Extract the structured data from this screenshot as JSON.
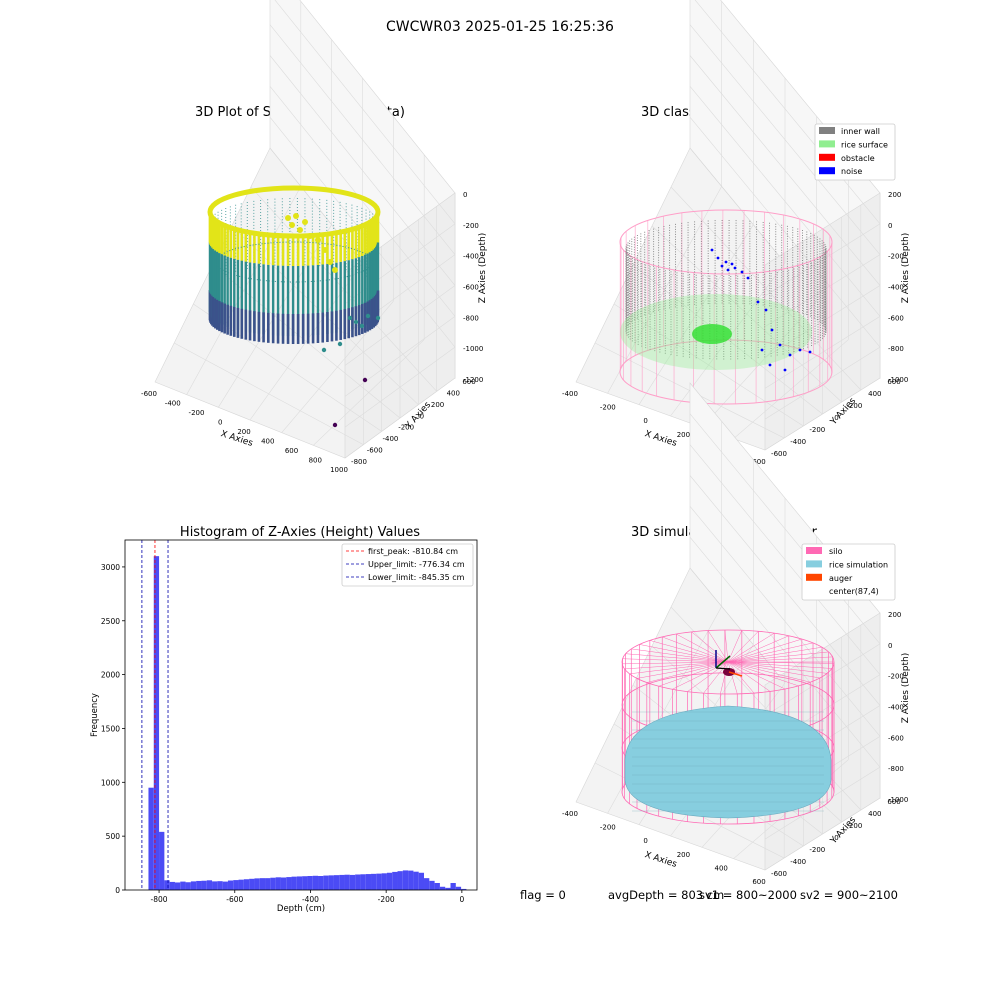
{
  "figure": {
    "suptitle": "CWCWR03 2025-01-25 16:25:36"
  },
  "panels": {
    "raw": {
      "title": "3D Plot of Silo Interior(row data)",
      "xlabel": "X Axies",
      "ylabel": "Y Axies",
      "zlabel": "Z Axies (Depth)",
      "xticks": [
        "-600",
        "-400",
        "-200",
        "0",
        "200",
        "400",
        "600",
        "800",
        "1000"
      ],
      "yticks": [
        "-800",
        "-600",
        "-400",
        "-200",
        "0",
        "200",
        "400",
        "600"
      ],
      "zticks": [
        "0",
        "-200",
        "-400",
        "-600",
        "-800",
        "-1000",
        "-1200"
      ],
      "colors": {
        "high": "#e2e418",
        "mid": "#2f8d8c",
        "low": "#3b528b",
        "deep": "#440154"
      }
    },
    "classify": {
      "title": "3D classify of Silo Interior",
      "xlabel": "X Axies",
      "ylabel": "Y Axies",
      "zlabel": "Z Axies (Depth)",
      "xticks": [
        "-400",
        "-200",
        "0",
        "200",
        "400",
        "600"
      ],
      "yticks": [
        "-600",
        "-400",
        "-200",
        "0",
        "200",
        "400",
        "600"
      ],
      "zticks": [
        "200",
        "0",
        "-200",
        "-400",
        "-600",
        "-800",
        "-1000"
      ],
      "legend": [
        {
          "label": "inner wall",
          "color": "#808080"
        },
        {
          "label": "rice surface",
          "color": "#90ee90"
        },
        {
          "label": "obstacle",
          "color": "#ff0000"
        },
        {
          "label": "noise",
          "color": "#0000ff"
        }
      ],
      "colors": {
        "wireframe": "#ff9ec8"
      }
    },
    "simulation": {
      "title": "3D simulation of Silo Interior",
      "xlabel": "X Axies",
      "ylabel": "Y Axies",
      "zlabel": "Z Axies (Depth)",
      "xticks": [
        "-400",
        "-200",
        "0",
        "200",
        "400",
        "600"
      ],
      "yticks": [
        "-600",
        "-400",
        "-200",
        "0",
        "200",
        "400",
        "600"
      ],
      "zticks": [
        "200",
        "0",
        "-200",
        "-400",
        "-600",
        "-800",
        "-1000"
      ],
      "legend": [
        {
          "label": "silo",
          "color": "#ff69b4"
        },
        {
          "label": "rice simulation",
          "color": "#87cedf"
        },
        {
          "label": "auger",
          "color": "#ff4500"
        },
        {
          "label": "center(87,4)",
          "color": ""
        }
      ]
    }
  },
  "chart_data": {
    "type": "bar",
    "title": "Histogram of Z-Axies (Height) Values",
    "xlabel": "Depth (cm)",
    "ylabel": "Frequency",
    "xlim": [
      -890,
      40
    ],
    "ylim": [
      0,
      3250
    ],
    "xticks": [
      -800,
      -600,
      -400,
      -200,
      0
    ],
    "yticks": [
      0,
      500,
      1000,
      1500,
      2000,
      2500,
      3000
    ],
    "bin_width": 14,
    "bin_starts": [
      -828,
      -814,
      -800,
      -786,
      -772,
      -758,
      -744,
      -730,
      -716,
      -702,
      -688,
      -674,
      -660,
      -646,
      -632,
      -618,
      -604,
      -590,
      -576,
      -562,
      -548,
      -534,
      -520,
      -506,
      -492,
      -478,
      -464,
      -450,
      -436,
      -422,
      -408,
      -394,
      -380,
      -366,
      -352,
      -338,
      -324,
      -310,
      -296,
      -282,
      -268,
      -254,
      -240,
      -226,
      -212,
      -198,
      -184,
      -170,
      -156,
      -142,
      -128,
      -114,
      -100,
      -86,
      -72,
      -58,
      -44,
      -30,
      -16,
      -2
    ],
    "values": [
      950,
      3100,
      540,
      90,
      75,
      70,
      78,
      72,
      80,
      84,
      86,
      90,
      80,
      82,
      78,
      88,
      92,
      96,
      100,
      104,
      108,
      110,
      110,
      114,
      118,
      116,
      120,
      124,
      126,
      128,
      130,
      132,
      130,
      134,
      136,
      138,
      140,
      142,
      140,
      144,
      146,
      148,
      150,
      152,
      155,
      160,
      168,
      175,
      182,
      180,
      170,
      160,
      110,
      85,
      65,
      30,
      20,
      65,
      30,
      10
    ],
    "bar_color": "#4b4bf5",
    "vlines": [
      {
        "label": "first_peak: -810.84 cm",
        "x": -810.84,
        "color": "#ff0000"
      },
      {
        "label": "Upper_limit: -776.34 cm",
        "x": -776.34,
        "color": "#0000aa"
      },
      {
        "label": "Lower_limit: -845.35 cm",
        "x": -845.35,
        "color": "#0000aa"
      }
    ],
    "legend_position": "upper right"
  },
  "status": {
    "flag": "flag = 0",
    "avg_depth": "avgDepth = 803 cm",
    "sv1": "sv1 = 800~2000",
    "sv2": "sv2 = 900~2100"
  }
}
